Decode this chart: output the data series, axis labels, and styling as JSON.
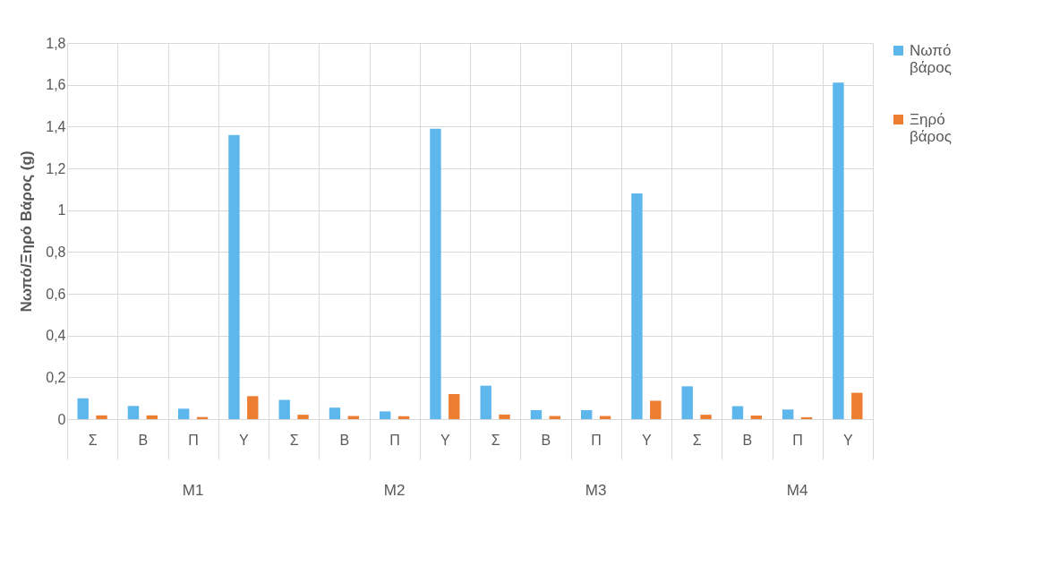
{
  "chart_data": {
    "type": "bar",
    "ylabel": "Νωπό/Ξηρό Βάρος (g)",
    "categories": [
      "Σ",
      "Β",
      "Π",
      "Υ",
      "Σ",
      "Β",
      "Π",
      "Υ",
      "Σ",
      "Β",
      "Π",
      "Υ",
      "Σ",
      "Β",
      "Π",
      "Υ"
    ],
    "annotations": [
      "M1",
      "M2",
      "M3",
      "M4"
    ],
    "series": [
      {
        "name": "Νωπό βάρος",
        "color": "#5db7ec",
        "values": [
          0.1,
          0.063,
          0.05,
          1.36,
          0.092,
          0.055,
          0.037,
          1.39,
          0.16,
          0.043,
          0.043,
          1.08,
          0.157,
          0.062,
          0.046,
          1.61
        ]
      },
      {
        "name": "Ξηρό βάρος",
        "color": "#ed7d31",
        "values": [
          0.018,
          0.018,
          0.01,
          0.11,
          0.021,
          0.015,
          0.014,
          0.12,
          0.022,
          0.015,
          0.015,
          0.088,
          0.021,
          0.017,
          0.009,
          0.126
        ]
      }
    ],
    "ylim": [
      0,
      1.8
    ],
    "yticks": [
      0,
      {
        "value": 0.2,
        "label": "0,2"
      },
      {
        "value": 0.4,
        "label": "0,4"
      },
      {
        "value": 0.6,
        "label": "0,6"
      },
      {
        "value": 0.8,
        "label": "0,8"
      },
      1,
      {
        "value": 1.2,
        "label": "1,2"
      },
      {
        "value": 1.4,
        "label": "1,4"
      },
      {
        "value": 1.6,
        "label": "1,6"
      },
      {
        "value": 1.8,
        "label": "1,8"
      }
    ],
    "grid": true,
    "legend": "right"
  }
}
